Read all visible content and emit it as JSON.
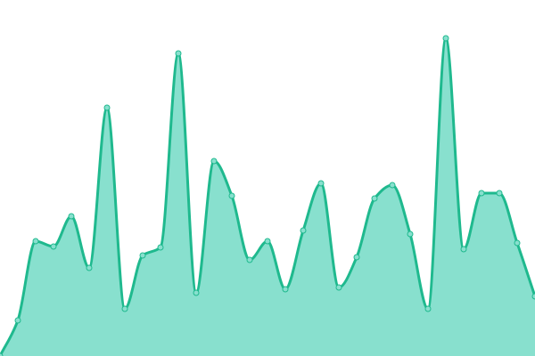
{
  "chart_data": {
    "type": "area",
    "categories": [
      null,
      null,
      null,
      null,
      null,
      null,
      null,
      null,
      null,
      null,
      null,
      null,
      null,
      null,
      null,
      null,
      null,
      null,
      null,
      null,
      null,
      null,
      null,
      null,
      null,
      null,
      null,
      null,
      null,
      null,
      null
    ],
    "values": [
      0,
      40,
      129,
      123,
      157,
      99,
      279,
      53,
      113,
      122,
      340,
      71,
      219,
      180,
      108,
      129,
      75,
      141,
      194,
      77,
      111,
      177,
      192,
      137,
      53,
      357,
      120,
      183,
      183,
      127,
      67
    ],
    "color": "#1fb98e",
    "fill": "#88e0ce",
    "ylim": [
      0,
      400
    ]
  }
}
